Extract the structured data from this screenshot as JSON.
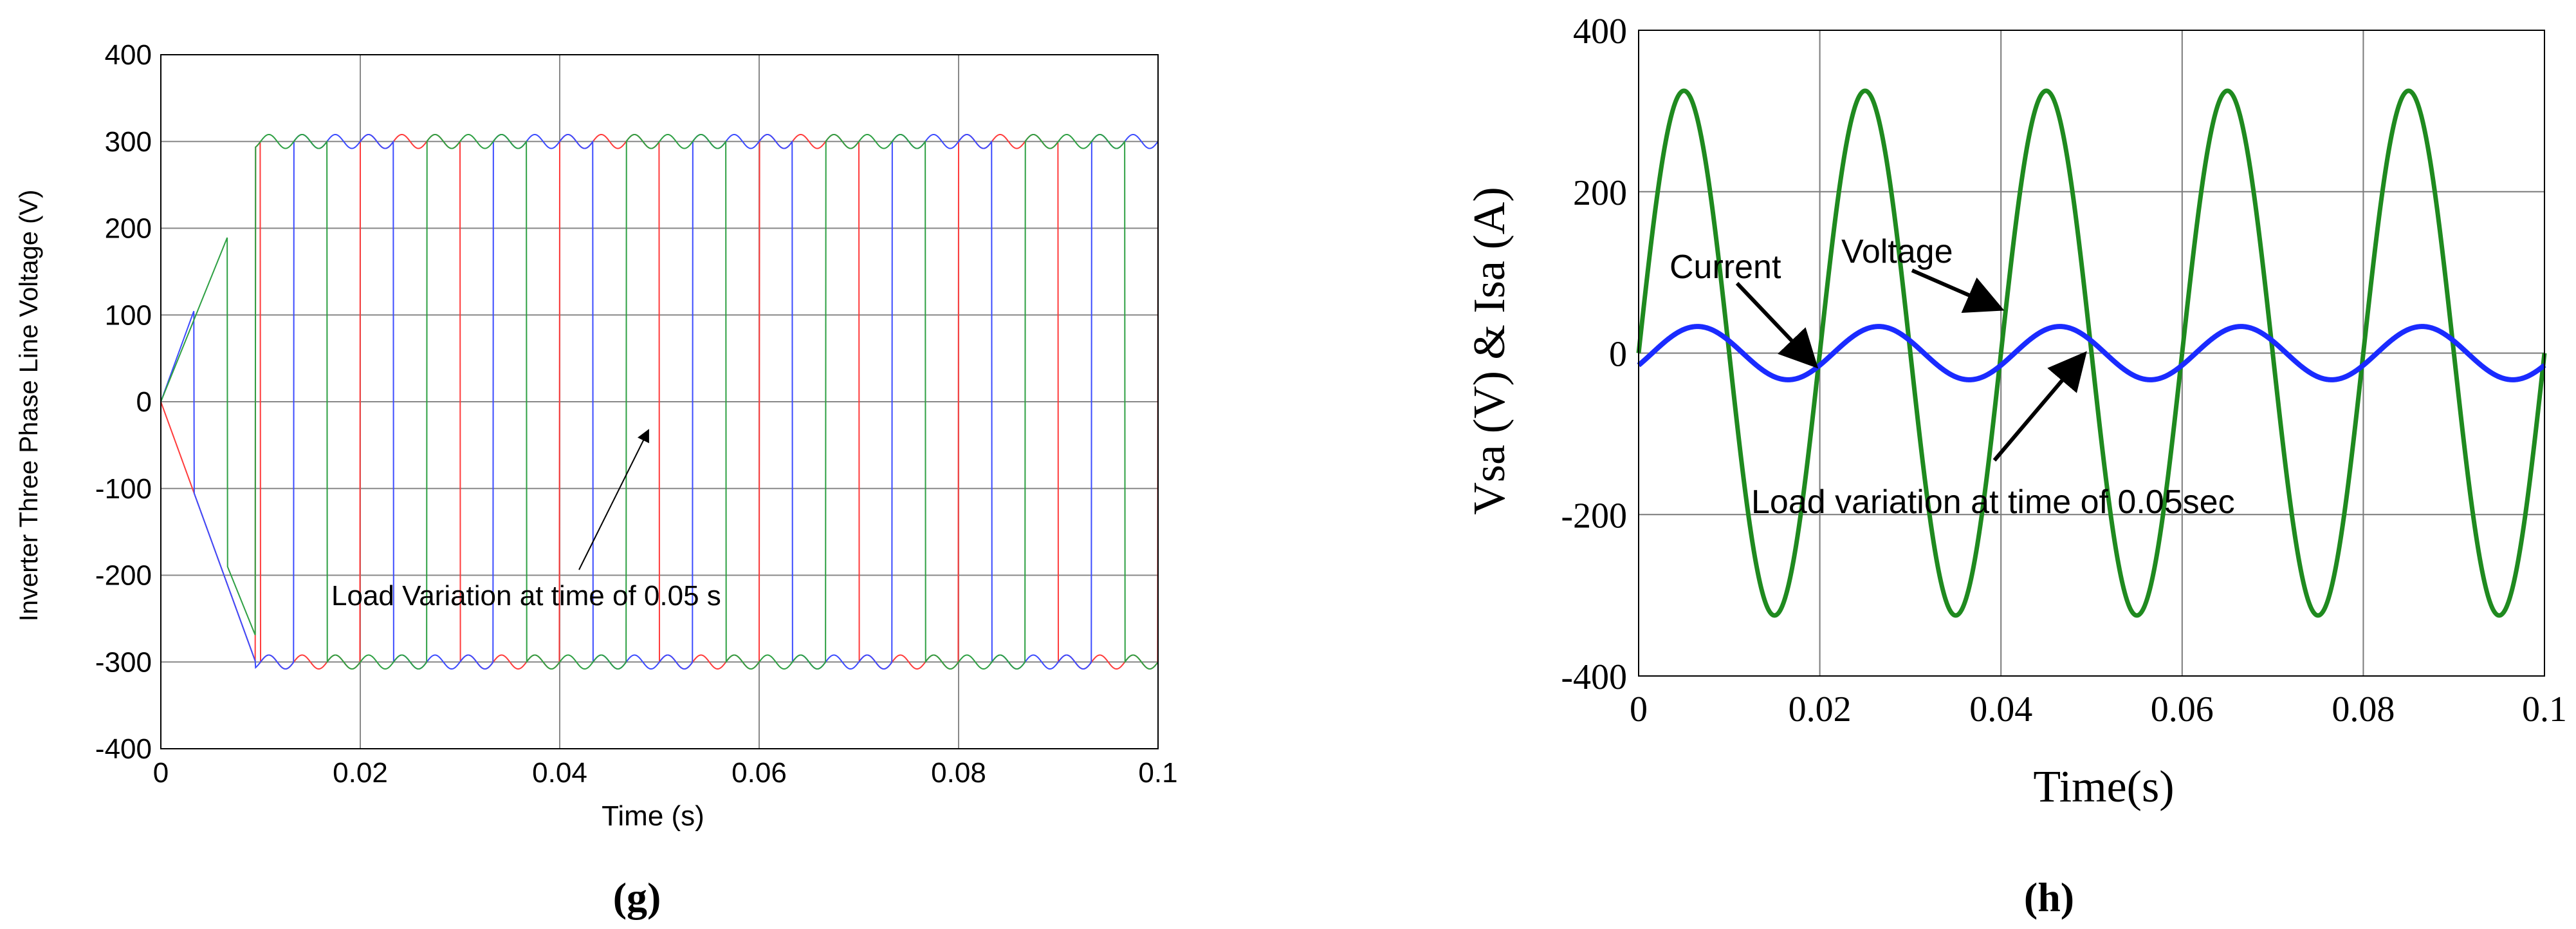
{
  "chart_data": [
    {
      "type": "line",
      "panel_label": "(g)",
      "xlabel": "Time (s)",
      "ylabel": "Inverter Three Phase Line Voltage (V)",
      "xlim": [
        0,
        0.1
      ],
      "ylim": [
        -400,
        400
      ],
      "x_ticks": [
        0,
        0.02,
        0.04,
        0.06,
        0.08,
        0.1
      ],
      "x_tick_labels": [
        "0",
        "0.02",
        "0.04",
        "0.06",
        "0.08",
        "0.1"
      ],
      "y_ticks": [
        -400,
        -300,
        -200,
        -100,
        0,
        100,
        200,
        300,
        400
      ],
      "y_tick_labels": [
        "-400",
        "-300",
        "-200",
        "-100",
        "0",
        "100",
        "200",
        "300",
        "400"
      ],
      "grid": true,
      "annotation": {
        "text": "Load Variation at time of 0.05 s",
        "x": 0.049,
        "y": -5
      },
      "series": [
        {
          "color": "#ff3b3b",
          "phase_offset": 0.0
        },
        {
          "color": "#3b4bff",
          "phase_offset": 0.00667
        },
        {
          "color": "#2ea043",
          "phase_offset": 0.01333
        }
      ],
      "amplitude": 300,
      "period": 0.02
    },
    {
      "type": "line",
      "panel_label": "(h)",
      "xlabel": "Time(s)",
      "ylabel": "Vsa (V) & Isa (A)",
      "xlim": [
        0,
        0.1
      ],
      "ylim": [
        -400,
        400
      ],
      "x_ticks": [
        0,
        0.02,
        0.04,
        0.06,
        0.08,
        0.1
      ],
      "x_tick_labels": [
        "0",
        "0.02",
        "0.04",
        "0.06",
        "0.08",
        "0.1"
      ],
      "y_ticks": [
        -400,
        -200,
        0,
        200,
        400
      ],
      "y_tick_labels": [
        "-400",
        "-200",
        "0",
        "200",
        "400"
      ],
      "grid": true,
      "annotations": [
        {
          "text": "Current",
          "x": 0.019,
          "y": -10
        },
        {
          "text": "Voltage",
          "x": 0.0205,
          "y": 55
        },
        {
          "text": "Load variation at time of 0.05sec",
          "x": 0.0495,
          "y": 10
        }
      ],
      "series": [
        {
          "color": "#1f8a1f",
          "amplitude": 325,
          "frequency": 50
        },
        {
          "color": "#1a2bff",
          "amplitude": 33,
          "frequency": 50,
          "phase_shift": -0.0015
        }
      ]
    }
  ]
}
